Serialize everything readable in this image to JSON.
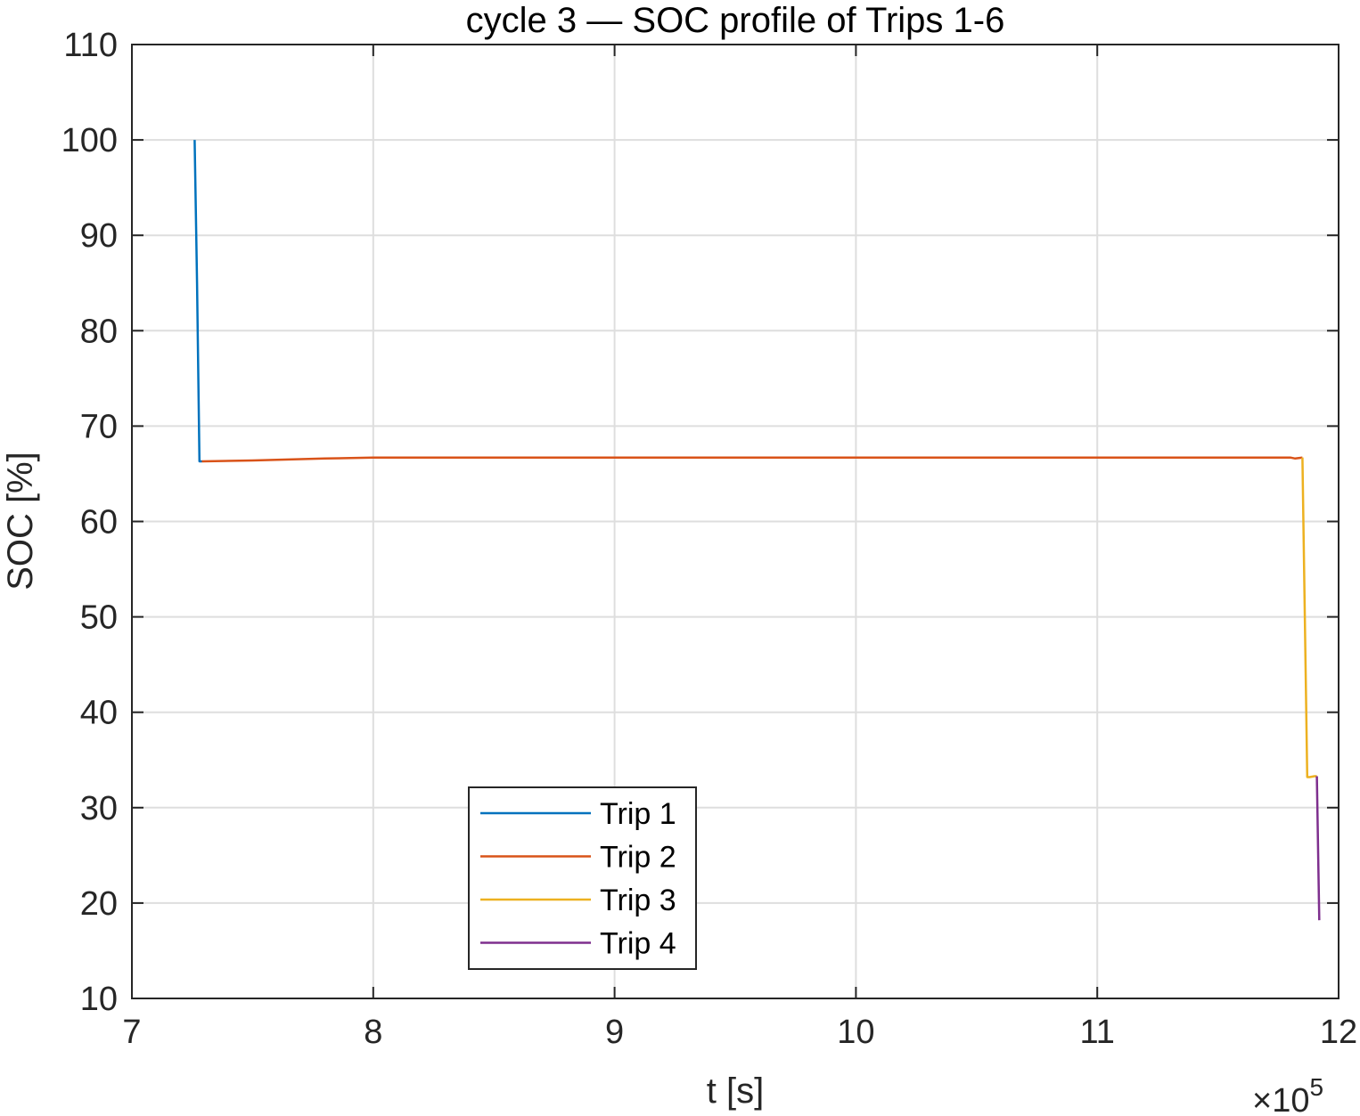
{
  "chart_data": {
    "type": "line",
    "title": "cycle 3  —  SOC profile of Trips 1-6",
    "xlabel": "t  [s]",
    "ylabel": "SOC  [%]",
    "x_exponent_label": "×10",
    "x_exponent_power": "5",
    "x_scale_factor": 100000,
    "xlim": [
      700000,
      1200000
    ],
    "ylim": [
      10,
      110
    ],
    "x_ticks": [
      700000,
      800000,
      900000,
      1000000,
      1100000,
      1200000
    ],
    "x_tick_labels": [
      "7",
      "8",
      "9",
      "10",
      "11",
      "12"
    ],
    "y_ticks": [
      10,
      20,
      30,
      40,
      50,
      60,
      70,
      80,
      90,
      100,
      110
    ],
    "y_tick_labels": [
      "10",
      "20",
      "30",
      "40",
      "50",
      "60",
      "70",
      "80",
      "90",
      "100",
      "110"
    ],
    "grid": true,
    "legend_position": "bottom-center",
    "series": [
      {
        "name": "Trip 1",
        "color": "#0072BD",
        "x": [
          726000,
          727000,
          728000,
          729000
        ],
        "y": [
          100,
          85,
          66.3,
          66.3
        ]
      },
      {
        "name": "Trip 2",
        "color": "#D95319",
        "x": [
          729000,
          750000,
          780000,
          800000,
          900000,
          1000000,
          1100000,
          1180000,
          1182000,
          1185000
        ],
        "y": [
          66.3,
          66.4,
          66.6,
          66.7,
          66.7,
          66.7,
          66.7,
          66.7,
          66.6,
          66.7
        ]
      },
      {
        "name": "Trip 3",
        "color": "#EDB120",
        "x": [
          1185000,
          1187000,
          1188000,
          1190000,
          1191000
        ],
        "y": [
          66.7,
          33.2,
          33.2,
          33.3,
          33.3
        ]
      },
      {
        "name": "Trip 4",
        "color": "#7E2F8E",
        "x": [
          1191000,
          1192000
        ],
        "y": [
          33.3,
          18.2
        ]
      }
    ]
  }
}
